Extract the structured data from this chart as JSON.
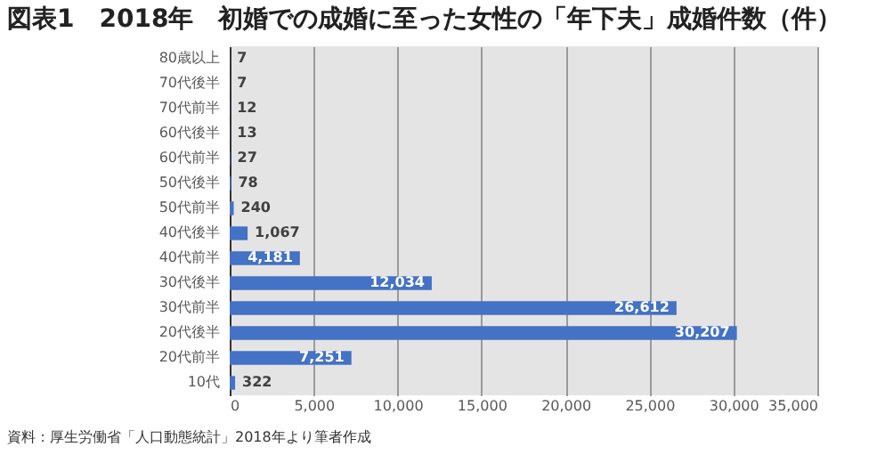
{
  "chart_data": {
    "type": "bar",
    "orientation": "horizontal",
    "title": "図表1　2018年　初婚での成婚に至った女性の「年下夫」成婚件数（件）",
    "categories": [
      "80歳以上",
      "70代後半",
      "70代前半",
      "60代後半",
      "60代前半",
      "50代後半",
      "50代前半",
      "40代後半",
      "40代前半",
      "30代後半",
      "30代前半",
      "20代後半",
      "20代前半",
      "10代"
    ],
    "values": [
      7,
      7,
      12,
      13,
      27,
      78,
      240,
      1067,
      4181,
      12034,
      26612,
      30207,
      7251,
      322
    ],
    "value_labels": [
      "7",
      "7",
      "12",
      "13",
      "27",
      "78",
      "240",
      "1,067",
      "4,181",
      "12,034",
      "26,612",
      "30,207",
      "7,251",
      "322"
    ],
    "color": "#4472c4",
    "xlim": [
      0,
      35000
    ],
    "xticks": [
      0,
      {
        "value": 5000,
        "label": "5,000"
      },
      {
        "value": 10000,
        "label": "10,000"
      },
      {
        "value": 15000,
        "label": "15,000"
      },
      {
        "value": 20000,
        "label": "20,000"
      },
      {
        "value": 25000,
        "label": "25,000"
      },
      {
        "value": 30000,
        "label": "30,000"
      },
      {
        "value": 35000,
        "label": "35,000"
      }
    ],
    "grid": "x",
    "annotations": [
      "資料：厚生労働省「人口動態統計」2018年より筆者作成"
    ]
  }
}
